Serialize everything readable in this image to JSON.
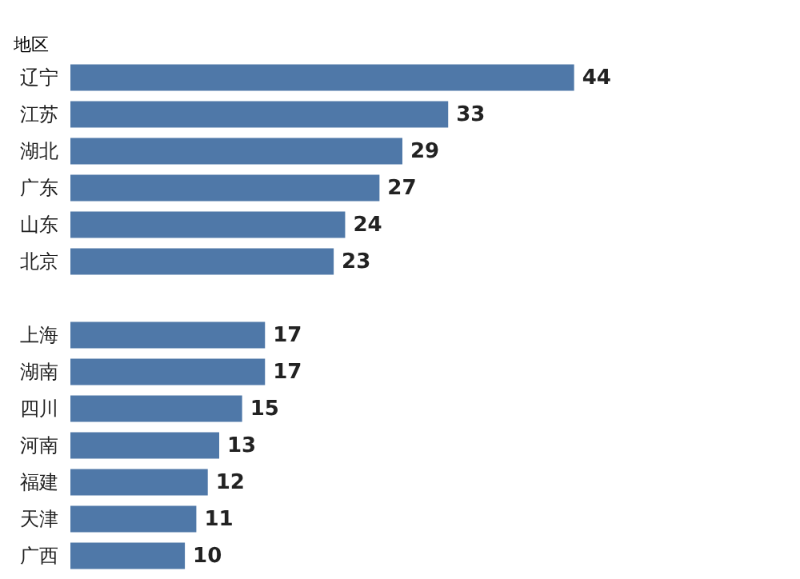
{
  "chart_data": {
    "type": "bar",
    "orientation": "horizontal",
    "ylabel": "地区",
    "categories": [
      "辽宁",
      "江苏",
      "湖北",
      "广东",
      "山东",
      "北京",
      null,
      "上海",
      "湖南",
      "四川",
      "河南",
      "福建",
      "天津",
      "广西"
    ],
    "values": [
      44,
      33,
      29,
      27,
      24,
      23,
      null,
      17,
      17,
      15,
      13,
      12,
      11,
      10
    ],
    "color": "#4f78a8",
    "data_labels": true
  }
}
